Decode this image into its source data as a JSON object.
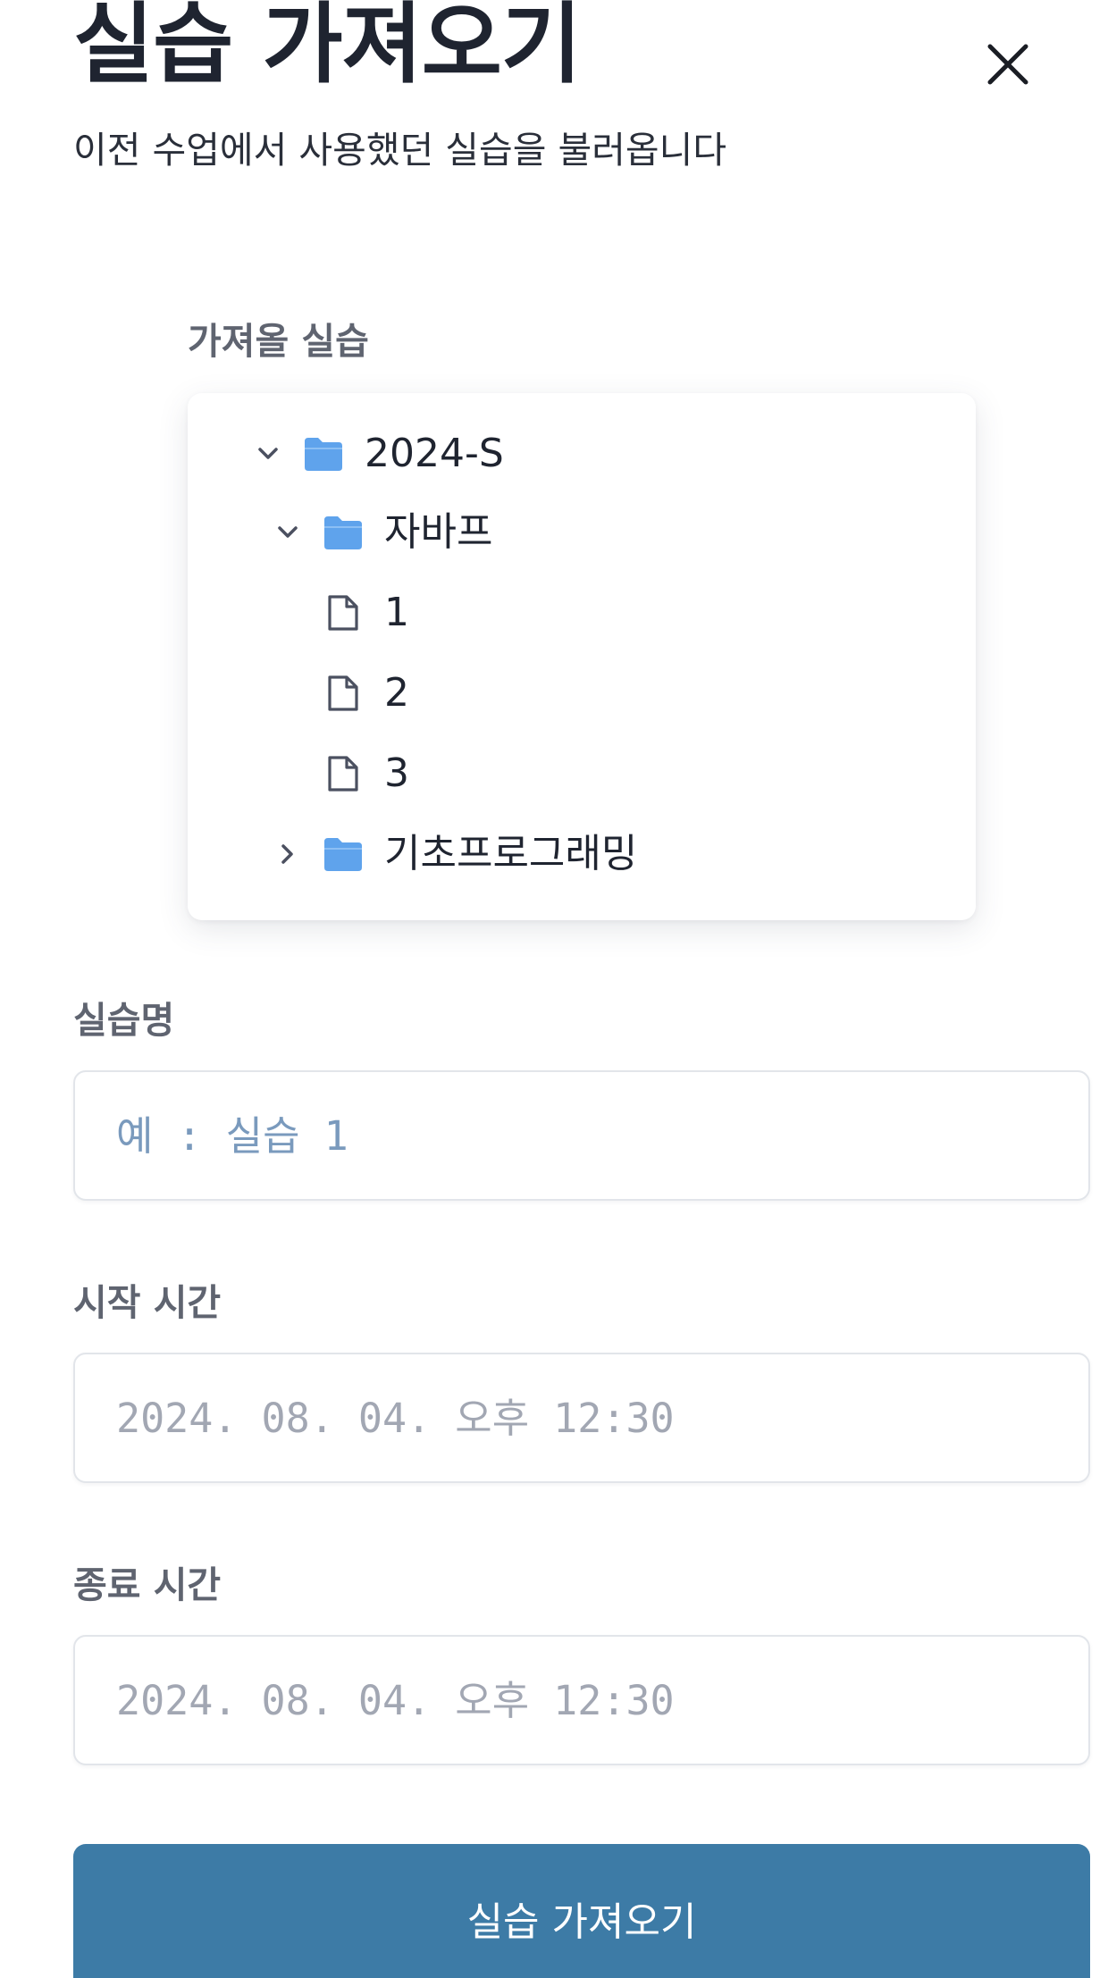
{
  "modal": {
    "title": "실습 가져오기",
    "subtitle": "이전 수업에서 사용했던 실습을 불러옵니다"
  },
  "tree_label": "가져올 실습",
  "tree": {
    "semester_folder": "2024-S",
    "course_folder_1": "자바프",
    "file_1": "1",
    "file_2": "2",
    "file_3": "3",
    "course_folder_2": "기초프로그래밍"
  },
  "form": {
    "name_label": "실습명",
    "name_placeholder": "예 : 실습 1",
    "start_label": "시작 시간",
    "start_placeholder": "2024. 08. 04. 오후 12:30",
    "end_label": "종료 시간",
    "end_placeholder": "2024. 08. 04. 오후 12:30"
  },
  "submit_label": "실습 가져오기",
  "colors": {
    "folder": "#5fa3ec",
    "button": "#3d7ba6",
    "placeholder_name": "#7a9abd",
    "placeholder_date": "#a2a7b3"
  },
  "icons": {
    "close": "close-icon",
    "folder": "folder-icon",
    "file": "file-icon",
    "expanded": "chevron-down-icon",
    "collapsed": "chevron-right-icon"
  }
}
